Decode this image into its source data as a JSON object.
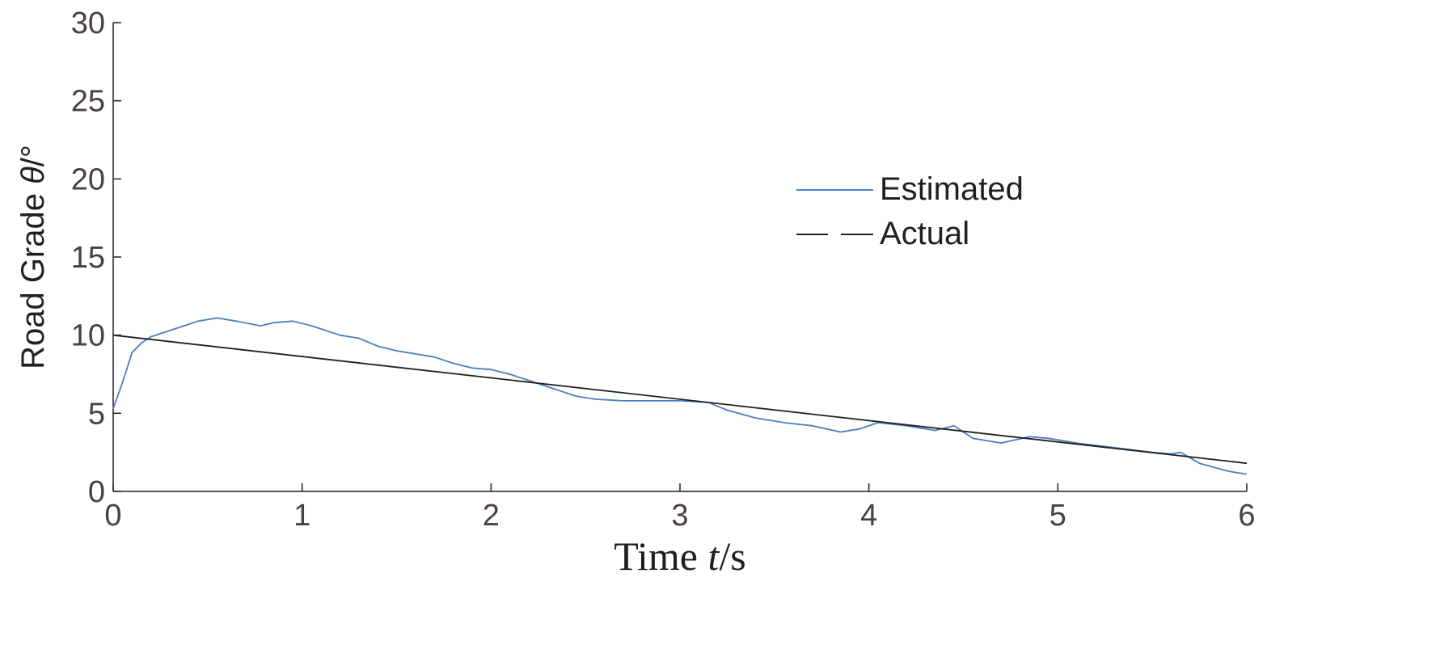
{
  "chart_data": {
    "type": "line",
    "xlabel": {
      "prefix": "Time ",
      "var": "t",
      "suffix": "/s"
    },
    "ylabel": {
      "prefix": "Road Grade ",
      "var": "θ",
      "suffix": "/°"
    },
    "xlim": [
      0,
      6
    ],
    "ylim": [
      0,
      30
    ],
    "xticks": [
      "0",
      "1",
      "2",
      "3",
      "4",
      "5",
      "6"
    ],
    "yticks": [
      "0",
      "5",
      "10",
      "15",
      "20",
      "25",
      "30"
    ],
    "grid": false,
    "legend": {
      "position": "upper-right"
    },
    "series": [
      {
        "name": "Estimated",
        "color": "#4a7fc1",
        "style": "solid",
        "x": [
          0,
          0.05,
          0.1,
          0.15,
          0.2,
          0.3,
          0.35,
          0.45,
          0.55,
          0.65,
          0.78,
          0.85,
          0.95,
          1.05,
          1.2,
          1.3,
          1.4,
          1.5,
          1.6,
          1.7,
          1.8,
          1.9,
          2.0,
          2.1,
          2.2,
          2.3,
          2.45,
          2.55,
          2.7,
          2.85,
          3.0,
          3.15,
          3.25,
          3.4,
          3.55,
          3.7,
          3.85,
          3.95,
          4.05,
          4.2,
          4.35,
          4.45,
          4.55,
          4.7,
          4.85,
          4.95,
          5.1,
          5.3,
          5.5,
          5.6,
          5.65,
          5.75,
          5.9,
          6.0
        ],
        "y": [
          5.3,
          7.0,
          8.9,
          9.5,
          9.9,
          10.3,
          10.5,
          10.9,
          11.1,
          10.9,
          10.6,
          10.8,
          10.9,
          10.6,
          10.0,
          9.8,
          9.3,
          9.0,
          8.8,
          8.6,
          8.2,
          7.9,
          7.8,
          7.5,
          7.1,
          6.7,
          6.1,
          5.9,
          5.8,
          5.8,
          5.8,
          5.7,
          5.2,
          4.7,
          4.4,
          4.2,
          3.8,
          4.0,
          4.4,
          4.2,
          3.9,
          4.2,
          3.4,
          3.1,
          3.5,
          3.4,
          3.1,
          2.8,
          2.5,
          2.4,
          2.5,
          1.8,
          1.3,
          1.1
        ]
      },
      {
        "name": "Actual",
        "color": "#231f20",
        "style": "solid",
        "x": [
          0,
          6
        ],
        "y": [
          10.0,
          1.8
        ]
      }
    ]
  }
}
